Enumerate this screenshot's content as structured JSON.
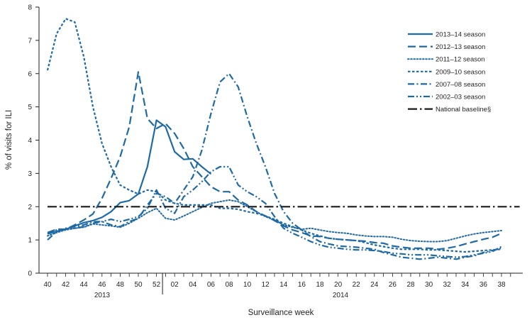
{
  "chart_data": {
    "type": "line",
    "xlabel": "Surveillance week",
    "ylabel": "% of visits for ILI",
    "ylim": [
      0,
      8
    ],
    "yticks": [
      "0",
      "1",
      "2",
      "3",
      "4",
      "5",
      "6",
      "7",
      "8"
    ],
    "week_ticks": [
      "40",
      "42",
      "44",
      "46",
      "48",
      "50",
      "52",
      "02",
      "04",
      "06",
      "08",
      "10",
      "12",
      "14",
      "16",
      "18",
      "20",
      "22",
      "24",
      "26",
      "28",
      "30",
      "32",
      "34",
      "36",
      "38"
    ],
    "year_labels": [
      "2013",
      "2014"
    ],
    "grid": false,
    "legend_position": "top-right",
    "x_note": "Weeks 40–52 of 2013 followed by weeks 1–39 of 2014",
    "series": [
      {
        "name": "2013–14 season",
        "style": "solid",
        "values": [
          1.18,
          1.26,
          1.32,
          1.42,
          1.52,
          1.58,
          1.68,
          1.85,
          2.12,
          2.18,
          2.38,
          3.2,
          4.6,
          4.4,
          3.65,
          3.42,
          3.44,
          3.2,
          2.98
        ]
      },
      {
        "name": "2012–13 season",
        "style": "longdash",
        "values": [
          1.22,
          1.32,
          1.32,
          1.45,
          1.6,
          1.78,
          2.25,
          2.85,
          3.5,
          4.4,
          6.05,
          4.65,
          4.35,
          4.5,
          4.2,
          3.75,
          3.2,
          2.9,
          2.6,
          2.45,
          2.45,
          2.2,
          2.05,
          1.85,
          1.72,
          1.58,
          1.42,
          1.3,
          1.22,
          1.12,
          1.1,
          1.05,
          1.02,
          1.0,
          0.98,
          0.96,
          0.92,
          0.9,
          0.82,
          0.78,
          0.75,
          0.75,
          0.75,
          0.72,
          0.75,
          0.8,
          0.88,
          0.95,
          1.02,
          1.08,
          1.2
        ]
      },
      {
        "name": "2011–12 season",
        "style": "dotted",
        "values": [
          1.12,
          1.22,
          1.3,
          1.35,
          1.38,
          1.48,
          1.45,
          1.42,
          1.38,
          1.5,
          1.65,
          1.82,
          1.95,
          1.65,
          1.6,
          1.72,
          1.85,
          1.98,
          2.1,
          2.15,
          2.2,
          2.15,
          2.0,
          1.85,
          1.7,
          1.6,
          1.45,
          1.38,
          1.32,
          1.35,
          1.3,
          1.25,
          1.22,
          1.2,
          1.15,
          1.12,
          1.1,
          1.1,
          1.08,
          1.02,
          0.98,
          0.96,
          0.95,
          0.95,
          0.98,
          1.05,
          1.12,
          1.18,
          1.22,
          1.25,
          1.28
        ]
      },
      {
        "name": "2009–10 season",
        "style": "shortdash",
        "values": [
          6.1,
          7.2,
          7.65,
          7.55,
          6.5,
          5.0,
          3.9,
          3.2,
          2.65,
          2.5,
          2.38,
          2.5,
          2.45,
          2.2,
          2.1,
          2.05,
          2.05,
          2.05,
          2.05,
          1.95,
          1.95,
          1.92,
          1.85,
          1.8,
          1.72,
          1.62,
          1.5,
          1.4,
          1.3,
          1.2,
          1.12,
          1.05,
          1.02,
          1.0,
          0.98,
          0.92,
          0.85,
          0.8,
          0.75,
          0.72,
          0.72,
          0.72,
          0.7,
          0.7,
          0.68,
          0.66,
          0.64,
          0.66,
          0.68,
          0.7,
          0.72
        ]
      },
      {
        "name": "2007–08 season",
        "style": "dashdot",
        "values": [
          1.0,
          1.25,
          1.35,
          1.4,
          1.45,
          1.55,
          1.55,
          1.45,
          1.4,
          1.55,
          1.65,
          2.05,
          2.4,
          2.3,
          2.1,
          2.5,
          2.9,
          3.7,
          4.8,
          5.75,
          6.0,
          5.6,
          4.7,
          3.9,
          3.2,
          2.4,
          1.85,
          1.5,
          1.3,
          1.1,
          0.95,
          0.88,
          0.82,
          0.8,
          0.78,
          0.75,
          0.72,
          0.62,
          0.55,
          0.48,
          0.45,
          0.42,
          0.45,
          0.48,
          0.45,
          0.42,
          0.48,
          0.52,
          0.62,
          0.68,
          0.75
        ]
      },
      {
        "name": "2002–03 season",
        "style": "dashdotdot",
        "values": [
          1.2,
          1.3,
          1.32,
          1.35,
          1.4,
          1.5,
          1.55,
          1.62,
          1.55,
          1.62,
          1.7,
          1.95,
          2.5,
          1.95,
          1.8,
          2.3,
          2.5,
          2.75,
          3.05,
          3.2,
          3.2,
          2.65,
          2.45,
          2.3,
          2.1,
          1.7,
          1.35,
          1.2,
          1.08,
          0.95,
          0.85,
          0.78,
          0.75,
          0.72,
          0.7,
          0.7,
          0.68,
          0.65,
          0.6,
          0.58,
          0.55,
          0.55,
          0.55,
          0.52,
          0.5,
          0.48,
          0.5,
          0.55,
          0.6,
          0.65,
          0.8
        ]
      },
      {
        "name": "National baseline§",
        "style": "baseline",
        "values": [
          2.0,
          2.0,
          2.0,
          2.0,
          2.0,
          2.0,
          2.0,
          2.0,
          2.0,
          2.0,
          2.0,
          2.0,
          2.0,
          2.0,
          2.0,
          2.0,
          2.0,
          2.0,
          2.0,
          2.0,
          2.0,
          2.0,
          2.0,
          2.0,
          2.0,
          2.0,
          2.0,
          2.0,
          2.0,
          2.0,
          2.0,
          2.0,
          2.0,
          2.0,
          2.0,
          2.0,
          2.0,
          2.0,
          2.0,
          2.0,
          2.0,
          2.0,
          2.0,
          2.0,
          2.0,
          2.0,
          2.0,
          2.0,
          2.0,
          2.0,
          2.0,
          2.0,
          2.0
        ]
      }
    ],
    "colors": {
      "series": "#1f6aa5",
      "baseline": "#1a1a1a",
      "axis": "#231f20"
    }
  }
}
